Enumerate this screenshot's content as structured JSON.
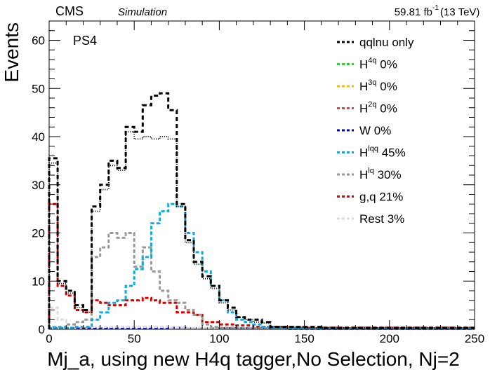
{
  "header": {
    "experiment": "CMS",
    "tag": "Simulation",
    "lumi_value": "59.81 fb",
    "lumi_exp": "-1",
    "energy": "(13 TeV)"
  },
  "chart_data": {
    "type": "histogram",
    "xlabel": "Mj_a, using new H4q tagger,No Selection, Nj=2",
    "ylabel": "Events",
    "annotation": "PS4",
    "xlim": [
      0,
      250
    ],
    "ylim": [
      0,
      64
    ],
    "x_ticks": [
      0,
      50,
      100,
      150,
      200,
      250
    ],
    "y_ticks": [
      0,
      10,
      20,
      30,
      40,
      50,
      60
    ],
    "bin_width": 5,
    "bin_edges_start": 0,
    "legend_position": "top-right",
    "legend": [
      {
        "label": "qqlnu only",
        "sup": "",
        "suffix": "",
        "color": "#000000"
      },
      {
        "label": "H",
        "sup": "4q",
        "suffix": "  0%",
        "color": "#33cc33"
      },
      {
        "label": "H",
        "sup": "3q",
        "suffix": "  0%",
        "color": "#ffbb00"
      },
      {
        "label": "H",
        "sup": "2q",
        "suffix": "  0%",
        "color": "#dd4444"
      },
      {
        "label": "W",
        "sup": "",
        "suffix": "      0%",
        "color": "#0000cc"
      },
      {
        "label": "H",
        "sup": "lqq",
        "suffix": " 45%",
        "color": "#11aadd"
      },
      {
        "label": "H",
        "sup": "lq",
        "suffix": "  30%",
        "color": "#999999"
      },
      {
        "label": "g,q",
        "sup": "",
        "suffix": "      21%",
        "color": "#dd0000"
      },
      {
        "label": "Rest",
        "sup": "",
        "suffix": "   3%",
        "color": "#dddddd"
      }
    ],
    "series": [
      {
        "name": "qqlnu only",
        "color": "#000000",
        "dash": "6,4",
        "width": 3,
        "values": [
          35.5,
          10,
          8,
          5,
          4,
          25.5,
          30,
          35,
          33.5,
          42,
          41,
          46.5,
          48.5,
          49,
          45.5,
          26,
          18.5,
          14,
          11,
          9,
          6,
          4.5,
          2.5,
          2,
          2,
          1.5,
          0.5,
          0.5,
          0.5,
          0.5,
          0.5,
          0.5,
          0.3,
          0.3,
          0.3,
          0.3,
          0.3,
          0.3,
          0.3,
          0.3,
          0.3,
          0.3,
          0.3,
          0.3,
          0.3,
          0.3,
          0.3,
          0.3,
          0.3,
          0.3
        ]
      },
      {
        "name": "stack",
        "color": "#000000",
        "dash": "1,2",
        "width": 2,
        "values": [
          34.5,
          9.5,
          7.5,
          4.5,
          3.5,
          24.5,
          29,
          34,
          33,
          41,
          39.5,
          40,
          39.5,
          40,
          39.5,
          25.5,
          18,
          13.5,
          10.5,
          8.5,
          5.5,
          4,
          2.5,
          2,
          1.5,
          1.3,
          0.5,
          0.5,
          0.5,
          0.5,
          0.3,
          0.3,
          0.3,
          0.3,
          0.3,
          0.3,
          0.3,
          0.3,
          0.3,
          0.3,
          0.3,
          0.3,
          0.3,
          0.3,
          0.3,
          0.3,
          0.3,
          0.3,
          0.3,
          0.3
        ]
      },
      {
        "name": "Hlqq",
        "color": "#11aadd",
        "dash": "5,3",
        "width": 3,
        "values": [
          0.3,
          0.3,
          0.3,
          0.5,
          0.5,
          2,
          3.5,
          5.5,
          6,
          9,
          12.5,
          15,
          22,
          24.5,
          26,
          25.5,
          20,
          16,
          12,
          9,
          6,
          3.5,
          2,
          1.5,
          1,
          0.5,
          0.3,
          0.3,
          0.3,
          0.2,
          0.2,
          0.2,
          0.2,
          0.2,
          0.2,
          0.2,
          0.2,
          0.2,
          0.2,
          0.2,
          0.2,
          0.2,
          0.2,
          0.2,
          0.2,
          0.2,
          0.2,
          0.2,
          0.2,
          0.2
        ]
      },
      {
        "name": "Hlq",
        "color": "#999999",
        "dash": "5,3",
        "width": 3,
        "values": [
          0.5,
          0.5,
          1,
          1.5,
          2,
          15,
          17,
          20,
          19,
          20,
          13,
          17,
          12,
          8,
          6,
          5.5,
          4,
          3,
          1,
          0.5,
          0.3,
          0.3,
          0.2,
          0.2,
          0.2,
          0.2,
          0.2,
          0.2,
          0.2,
          0.2,
          0.2,
          0.2,
          0.2,
          0.2,
          0.2,
          0.2,
          0.2,
          0.2,
          0.2,
          0.2,
          0.2,
          0.2,
          0.2,
          0.2,
          0.2,
          0.2,
          0.2,
          0.2,
          0.2,
          0.2
        ]
      },
      {
        "name": "g,q",
        "color": "#dd0000",
        "dash": "5,3",
        "width": 3,
        "values": [
          26,
          9,
          7,
          4,
          3.5,
          6,
          5.5,
          5,
          5,
          6,
          6,
          6.5,
          6,
          5.5,
          5.5,
          3.5,
          3.5,
          3,
          1.5,
          1.5,
          1,
          1,
          0.8,
          0.8,
          0.5,
          0.5,
          0.5,
          0.5,
          0.3,
          0.3,
          0.3,
          0.3,
          0.3,
          0.3,
          0.3,
          0.3,
          0.3,
          0.3,
          0.3,
          0.3,
          0.3,
          0.3,
          0.3,
          0.3,
          0.3,
          0.3,
          0.3,
          0.3,
          0.3,
          0.3
        ]
      },
      {
        "name": "Rest",
        "color": "#dddddd",
        "dash": "5,3",
        "width": 3,
        "values": [
          4.5,
          2,
          1,
          0.5,
          0.5,
          0.5,
          0.5,
          0.5,
          0.5,
          0.5,
          0.5,
          0.5,
          0.5,
          0.5,
          0.3,
          0.3,
          0.3,
          0.3,
          0.3,
          0.3,
          0.2,
          0.2,
          0.2,
          0.2,
          0.2,
          0.2,
          0.2,
          0.2,
          0.2,
          0.2,
          0.2,
          0.2,
          0.2,
          0.2,
          0.2,
          0.2,
          0.2,
          0.2,
          0.2,
          0.2,
          0.2,
          0.2,
          0.2,
          0.2,
          0.2,
          0.2,
          0.2,
          0.2,
          0.2,
          0.2
        ]
      },
      {
        "name": "W",
        "color": "#0000cc",
        "dash": "5,3",
        "width": 3,
        "values": [
          0.2,
          0.2,
          0.2,
          0.2,
          0.2,
          0.2,
          0.2,
          0.3,
          0.3,
          0.3,
          0.3,
          0.3,
          0.3,
          0.3,
          0.3,
          0.3,
          0.2,
          0.2,
          0.2,
          0.2,
          0.2,
          0.2,
          0.2,
          0.2,
          0.2,
          0.2,
          0.2,
          0.2,
          0.1,
          0.1,
          0.1,
          0.1,
          0.1,
          0.1,
          0.1,
          0.1,
          0.1,
          0.1,
          0.1,
          0.1,
          0.1,
          0.1,
          0.1,
          0.1,
          0.1,
          0.1,
          0.1,
          0.1,
          0.1,
          0.1
        ]
      }
    ]
  }
}
